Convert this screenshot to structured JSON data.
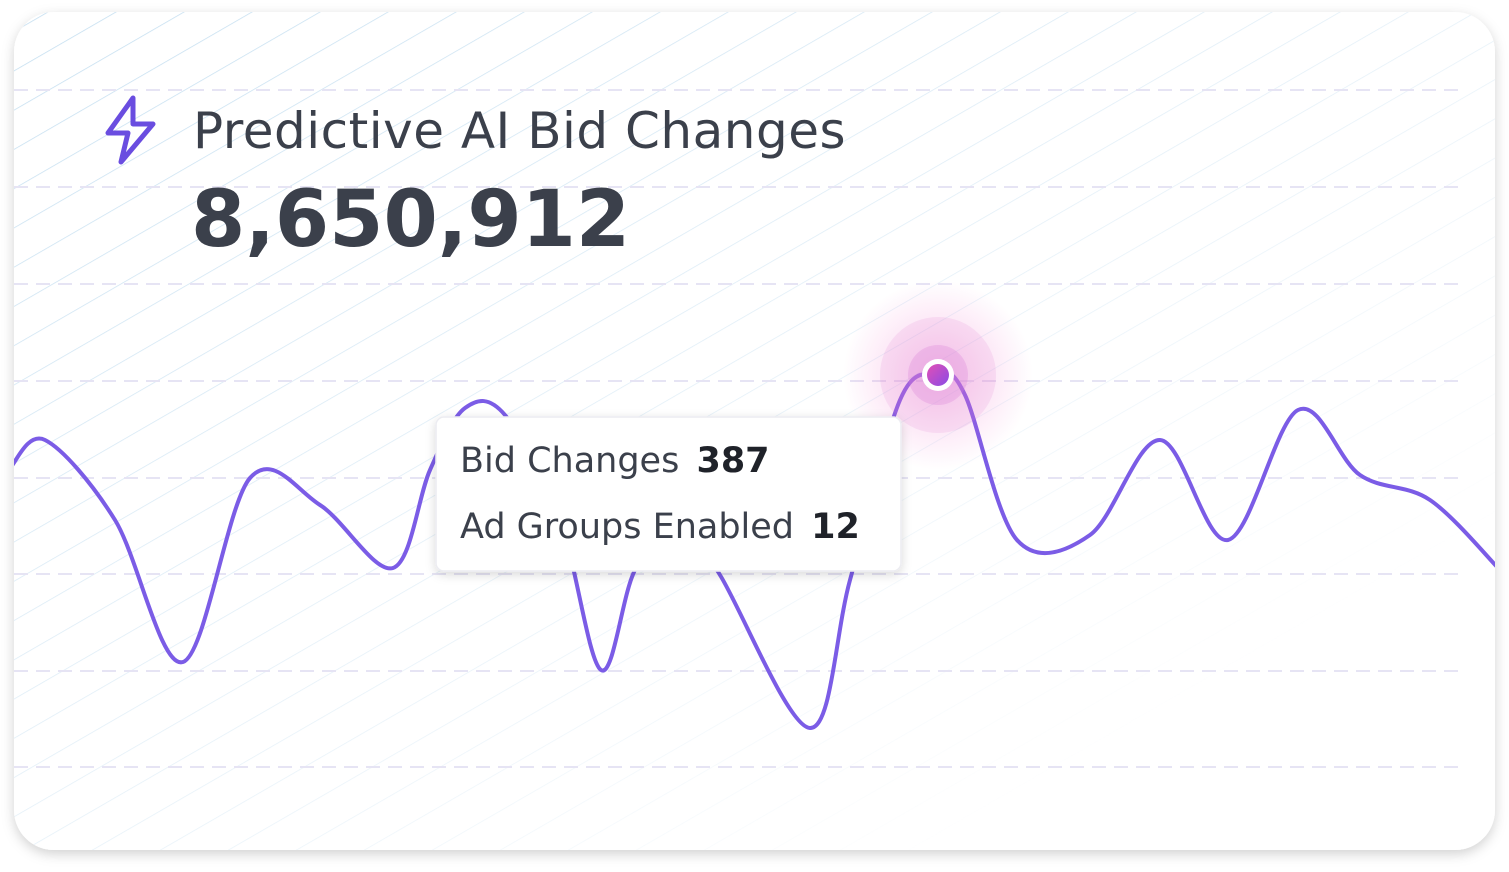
{
  "card": {
    "title": "Predictive AI Bid Changes",
    "total": "8,650,912",
    "tooltip": {
      "rows": [
        {
          "label": "Bid Changes",
          "value": 387
        },
        {
          "label": "Ad Groups Enabled",
          "value": 12
        }
      ]
    }
  }
}
